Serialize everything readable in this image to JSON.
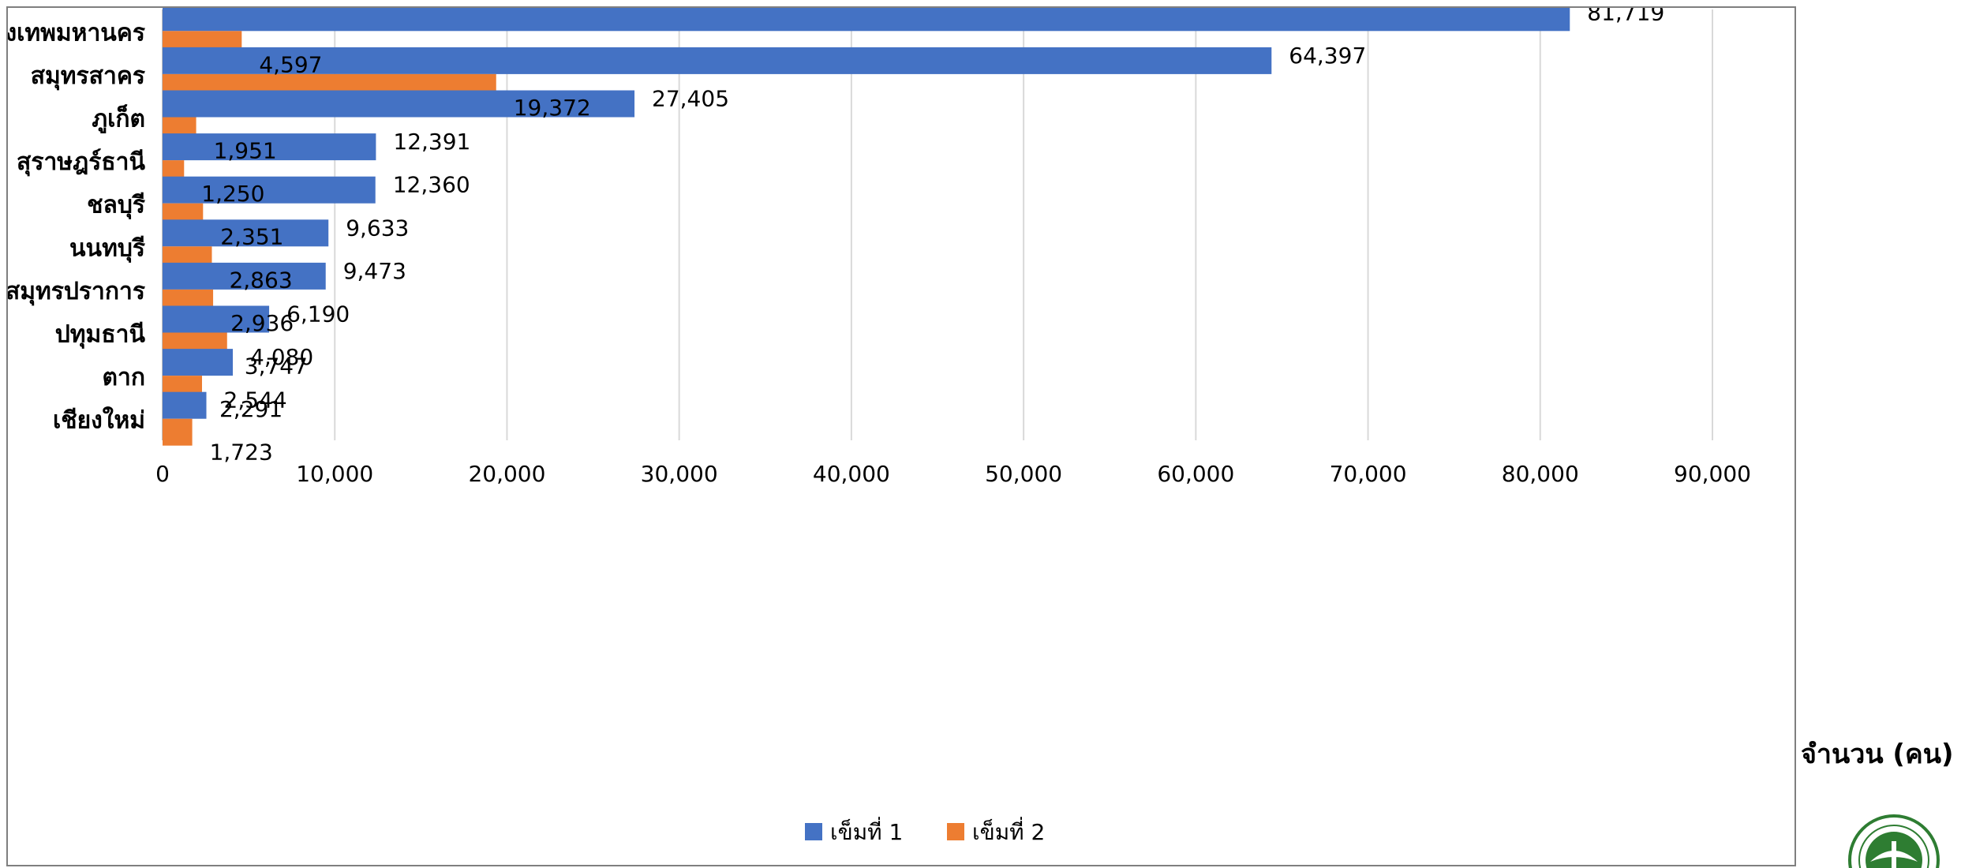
{
  "chart_data": {
    "type": "bar",
    "orientation": "horizontal",
    "categories": [
      "กรุงเทพมหานคร",
      "สมุทรสาคร",
      "ภูเก็ต",
      "สุราษฎร์ธานี",
      "ชลบุรี",
      "นนทบุรี",
      "สมุทรปราการ",
      "ปทุมธานี",
      "ตาก",
      "เชียงใหม่"
    ],
    "series": [
      {
        "name": "เข็มที่ 1",
        "color": "#4472c4",
        "values": [
          81719,
          64397,
          27405,
          12391,
          12360,
          9633,
          9473,
          6190,
          4080,
          2544
        ],
        "labels": [
          "81,719",
          "64,397",
          "27,405",
          "12,391",
          "12,360",
          "9,633",
          "9,473",
          "6,190",
          "4,080",
          "2,544"
        ]
      },
      {
        "name": "เข็มที่ 2",
        "color": "#ed7d31",
        "values": [
          4597,
          19372,
          1951,
          1250,
          2351,
          2863,
          2936,
          3747,
          2291,
          1723
        ],
        "labels": [
          "4,597",
          "19,372",
          "1,951",
          "1,250",
          "2,351",
          "2,863",
          "2,936",
          "3,747",
          "2,291",
          "1,723"
        ]
      }
    ],
    "xlim": [
      0,
      90000
    ],
    "xticks": [
      0,
      10000,
      20000,
      30000,
      40000,
      50000,
      60000,
      70000,
      80000,
      90000
    ],
    "xtick_labels": [
      "0",
      "10,000",
      "20,000",
      "30,000",
      "40,000",
      "50,000",
      "60,000",
      "70,000",
      "80,000",
      "90,000"
    ],
    "xlabel": "จำนวน (คน)",
    "grid": "vertical",
    "legend": "bottom-center"
  },
  "logo": {
    "name": "ministry-seal-icon"
  }
}
